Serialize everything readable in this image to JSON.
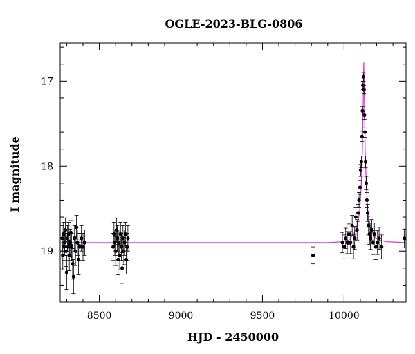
{
  "chart_data": {
    "type": "scatter",
    "title": "OGLE-2023-BLG-0806",
    "xlabel": "HJD - 2450000",
    "ylabel": "I magnitude",
    "xlim": [
      8260,
      10380
    ],
    "ylim": [
      19.6,
      16.55
    ],
    "y_inverted": true,
    "x_ticks": [
      8500,
      9000,
      9500,
      10000
    ],
    "x_tick_labels": [
      "8500",
      "9000",
      "9500",
      "10000"
    ],
    "y_ticks": [
      17,
      18,
      19
    ],
    "y_tick_labels": [
      "17",
      "18",
      "19"
    ],
    "grid": false,
    "legend": "none",
    "colors": {
      "points": "#000000",
      "model": "#d633d6",
      "axes": "#000000"
    },
    "series": [
      {
        "values_note": "",
        "x": [
          8272,
          8276,
          8280,
          8284,
          8288,
          8292,
          8296,
          8300,
          8304,
          8308,
          8312,
          8316,
          8320,
          8325,
          8330,
          8336,
          8342,
          8348,
          8354,
          8360,
          8366,
          8372,
          8380,
          8390,
          8400,
          8410,
          8585,
          8590,
          8595,
          8600,
          8605,
          8610,
          8615,
          8620,
          8625,
          8630,
          8635,
          8640,
          8645,
          8650,
          8655,
          8660,
          8665,
          8670,
          8675,
          9810,
          9990,
          10000,
          10010,
          10020,
          10030,
          10040,
          10050,
          10058,
          10065,
          10072,
          10080,
          10086,
          10092,
          10098,
          10102,
          10106,
          10110,
          10113,
          10116,
          10119,
          10122,
          10125,
          10128,
          10132,
          10136,
          10140,
          10145,
          10150,
          10156,
          10162,
          10170,
          10178,
          10186,
          10195,
          10205,
          10215,
          10230,
          10370
        ],
        "y": [
          18.85,
          19.05,
          18.8,
          18.95,
          18.9,
          18.75,
          19.0,
          19.25,
          18.85,
          18.95,
          18.8,
          19.05,
          18.9,
          18.78,
          18.95,
          19.15,
          19.3,
          18.85,
          19.0,
          18.72,
          18.9,
          19.1,
          18.95,
          18.85,
          18.95,
          18.9,
          18.95,
          18.8,
          18.9,
          19.0,
          18.75,
          18.85,
          19.1,
          18.9,
          19.05,
          18.8,
          18.95,
          19.2,
          18.85,
          19.0,
          18.9,
          18.8,
          19.1,
          18.95,
          18.85,
          19.05,
          18.9,
          18.95,
          18.85,
          18.9,
          18.8,
          18.9,
          18.7,
          18.95,
          18.85,
          18.6,
          18.75,
          18.55,
          18.4,
          18.25,
          18.05,
          17.95,
          17.65,
          17.35,
          17.05,
          16.95,
          17.1,
          17.4,
          17.6,
          17.95,
          18.2,
          18.4,
          18.55,
          18.7,
          18.8,
          18.85,
          18.75,
          18.9,
          18.8,
          18.95,
          18.9,
          18.85,
          18.95,
          18.85
        ],
        "yerr": [
          0.15,
          0.17,
          0.14,
          0.16,
          0.15,
          0.14,
          0.18,
          0.2,
          0.15,
          0.16,
          0.14,
          0.18,
          0.16,
          0.14,
          0.16,
          0.18,
          0.2,
          0.15,
          0.17,
          0.14,
          0.15,
          0.18,
          0.16,
          0.15,
          0.16,
          0.15,
          0.16,
          0.14,
          0.15,
          0.17,
          0.14,
          0.15,
          0.18,
          0.15,
          0.17,
          0.14,
          0.16,
          0.18,
          0.15,
          0.16,
          0.15,
          0.14,
          0.17,
          0.16,
          0.15,
          0.1,
          0.12,
          0.14,
          0.12,
          0.13,
          0.12,
          0.13,
          0.12,
          0.14,
          0.13,
          0.11,
          0.12,
          0.1,
          0.09,
          0.08,
          0.07,
          0.07,
          0.06,
          0.05,
          0.05,
          0.05,
          0.05,
          0.05,
          0.06,
          0.07,
          0.08,
          0.09,
          0.1,
          0.11,
          0.12,
          0.13,
          0.12,
          0.14,
          0.13,
          0.15,
          0.14,
          0.13,
          0.14,
          0.11
        ]
      }
    ],
    "model": {
      "baseline": 18.9,
      "t0": 10121,
      "peak": 16.78,
      "x": [
        8260,
        9900,
        9990,
        10030,
        10060,
        10080,
        10095,
        10105,
        10112,
        10117,
        10121,
        10125,
        10130,
        10137,
        10147,
        10162,
        10185,
        10215,
        10260,
        10380
      ],
      "y": [
        18.9,
        18.9,
        18.89,
        18.87,
        18.8,
        18.7,
        18.55,
        18.25,
        17.85,
        17.3,
        16.78,
        17.3,
        17.85,
        18.25,
        18.55,
        18.72,
        18.83,
        18.87,
        18.89,
        18.9
      ]
    }
  }
}
